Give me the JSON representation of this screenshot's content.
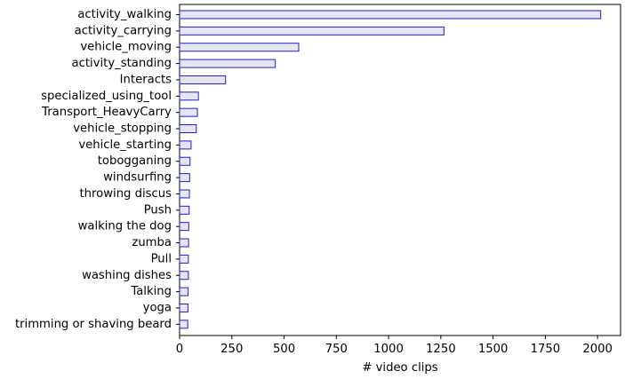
{
  "chart_data": {
    "type": "bar",
    "orientation": "horizontal",
    "categories": [
      "activity_walking",
      "activity_carrying",
      "vehicle_moving",
      "activity_standing",
      "Interacts",
      "specialized_using_tool",
      "Transport_HeavyCarry",
      "vehicle_stopping",
      "vehicle_starting",
      "tobogganing",
      "windsurfing",
      "throwing discus",
      "Push",
      "walking the dog",
      "zumba",
      "Pull",
      "washing dishes",
      "Talking",
      "yoga",
      "trimming or shaving beard"
    ],
    "values": [
      2015,
      1265,
      570,
      458,
      220,
      90,
      85,
      80,
      55,
      50,
      48,
      47,
      46,
      44,
      43,
      42,
      42,
      41,
      40,
      39
    ],
    "xlabel": "# video clips",
    "ylabel": "",
    "title": "",
    "xlim": [
      0,
      2110
    ],
    "xticks": [
      0,
      250,
      500,
      750,
      1000,
      1250,
      1500,
      1750,
      2000
    ],
    "grid": false,
    "legend": "none",
    "bar_fill": "#e6e6f2",
    "bar_edge": "#1f1fcc"
  }
}
